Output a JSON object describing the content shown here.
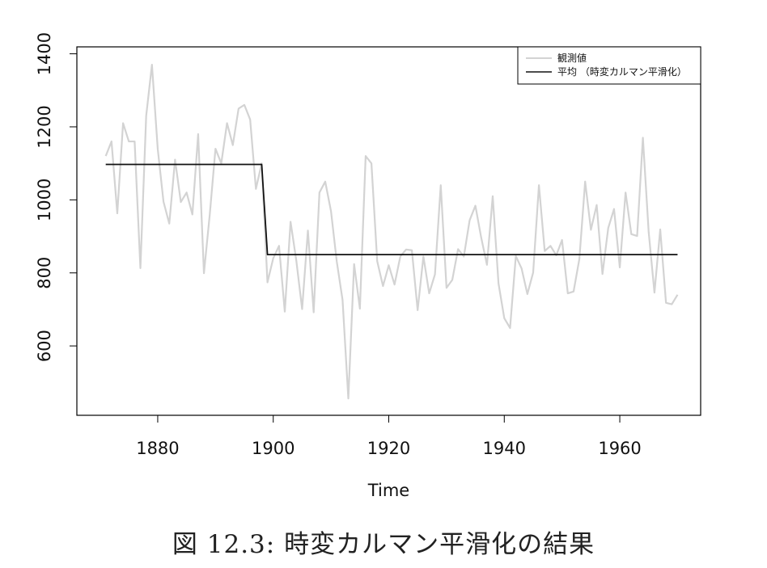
{
  "chart_data": {
    "type": "line",
    "title": "",
    "xlabel": "Time",
    "ylabel": "",
    "xlim": [
      1866,
      1974
    ],
    "ylim": [
      410,
      1419
    ],
    "x_ticks": [
      1880,
      1900,
      1920,
      1940,
      1960
    ],
    "x_tick_labels": [
      "1880",
      "1900",
      "1920",
      "1940",
      "1960"
    ],
    "y_ticks": [
      600,
      800,
      1000,
      1200,
      1400
    ],
    "y_tick_labels": [
      "600",
      "800",
      "1000",
      "1200",
      "1400"
    ],
    "grid": false,
    "legend_position": "top-right",
    "series": [
      {
        "name": "観測値",
        "color": "#d3d3d3",
        "x": [
          1871,
          1872,
          1873,
          1874,
          1875,
          1876,
          1877,
          1878,
          1879,
          1880,
          1881,
          1882,
          1883,
          1884,
          1885,
          1886,
          1887,
          1888,
          1889,
          1890,
          1891,
          1892,
          1893,
          1894,
          1895,
          1896,
          1897,
          1898,
          1899,
          1900,
          1901,
          1902,
          1903,
          1904,
          1905,
          1906,
          1907,
          1908,
          1909,
          1910,
          1911,
          1912,
          1913,
          1914,
          1915,
          1916,
          1917,
          1918,
          1919,
          1920,
          1921,
          1922,
          1923,
          1924,
          1925,
          1926,
          1927,
          1928,
          1929,
          1930,
          1931,
          1932,
          1933,
          1934,
          1935,
          1936,
          1937,
          1938,
          1939,
          1940,
          1941,
          1942,
          1943,
          1944,
          1945,
          1946,
          1947,
          1948,
          1949,
          1950,
          1951,
          1952,
          1953,
          1954,
          1955,
          1956,
          1957,
          1958,
          1959,
          1960,
          1961,
          1962,
          1963,
          1964,
          1965,
          1966,
          1967,
          1968,
          1969,
          1970
        ],
        "values": [
          1120,
          1160,
          963,
          1210,
          1160,
          1160,
          813,
          1230,
          1370,
          1140,
          995,
          935,
          1110,
          994,
          1020,
          960,
          1180,
          799,
          958,
          1140,
          1100,
          1210,
          1150,
          1250,
          1260,
          1220,
          1030,
          1100,
          774,
          840,
          874,
          694,
          940,
          833,
          701,
          916,
          692,
          1020,
          1050,
          969,
          831,
          726,
          456,
          824,
          702,
          1120,
          1100,
          832,
          764,
          821,
          768,
          845,
          864,
          862,
          698,
          845,
          744,
          796,
          1040,
          759,
          781,
          865,
          845,
          944,
          984,
          897,
          822,
          1010,
          771,
          676,
          649,
          846,
          812,
          742,
          801,
          1040,
          860,
          874,
          848,
          890,
          744,
          749,
          838,
          1050,
          918,
          986,
          797,
          923,
          975,
          815,
          1020,
          906,
          901,
          1170,
          912,
          746,
          919,
          718,
          714,
          740
        ]
      },
      {
        "name": "平均 （時変カルマン平滑化）",
        "color": "#111111",
        "x": [
          1871,
          1898,
          1899,
          1970
        ],
        "values": [
          1097,
          1097,
          850,
          850
        ]
      }
    ]
  },
  "caption": "図 12.3: 時変カルマン平滑化の結果"
}
